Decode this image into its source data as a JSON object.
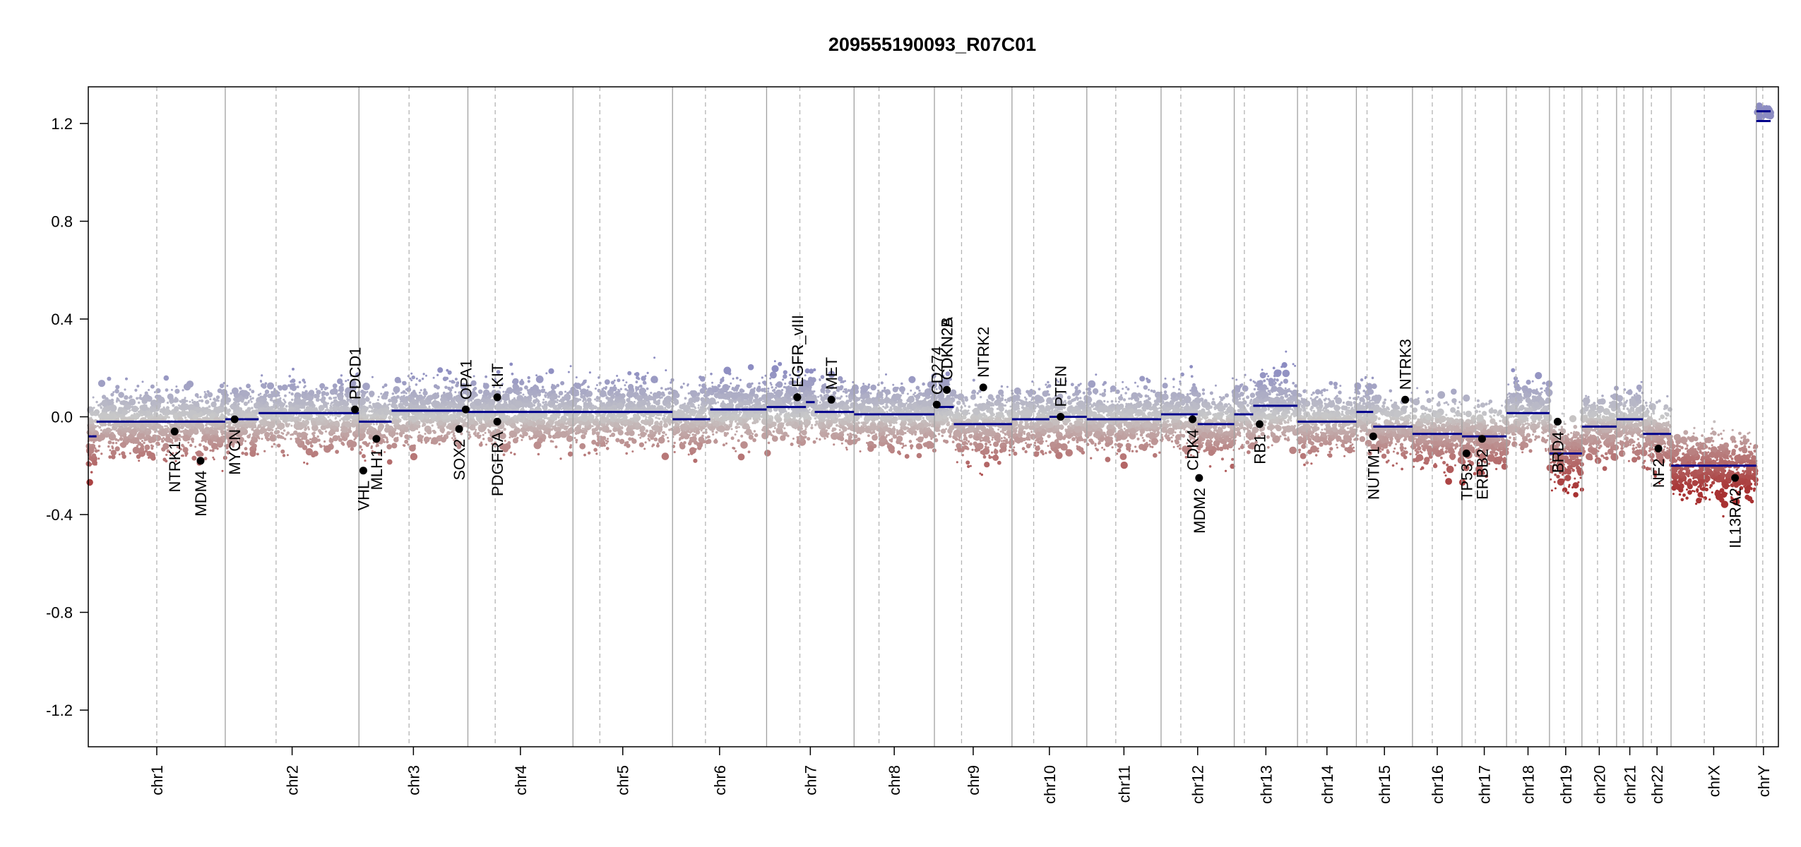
{
  "chart_data": {
    "type": "scatter",
    "title": "209555190093_R07C01",
    "xlabel": "",
    "ylabel": "",
    "ylim": [
      -1.35,
      1.35
    ],
    "yticks": [
      -1.2,
      -0.8,
      -0.4,
      0.0,
      0.4,
      0.8,
      1.2
    ],
    "ytick_labels": [
      "-1.2",
      "-0.8",
      "-0.4",
      "0.0",
      "0.4",
      "0.8",
      "1.2"
    ],
    "colors": {
      "gain": "#8c8cc2",
      "neutral": "#c8c8c8",
      "loss": "#a83232",
      "segment": "#00008b",
      "gene": "#000000"
    },
    "chromosomes": [
      {
        "name": "chr1",
        "length": 249,
        "centromere": 0.5,
        "segments": [
          {
            "start": 0.0,
            "end": 0.06,
            "value": -0.08
          },
          {
            "start": 0.06,
            "end": 1.0,
            "value": -0.02
          }
        ]
      },
      {
        "name": "chr2",
        "length": 243,
        "centromere": 0.38,
        "segments": [
          {
            "start": 0.0,
            "end": 0.25,
            "value": -0.01
          },
          {
            "start": 0.25,
            "end": 1.0,
            "value": 0.015
          }
        ]
      },
      {
        "name": "chr3",
        "length": 198,
        "centromere": 0.46,
        "segments": [
          {
            "start": 0.0,
            "end": 0.3,
            "value": -0.02
          },
          {
            "start": 0.3,
            "end": 1.0,
            "value": 0.025
          }
        ]
      },
      {
        "name": "chr4",
        "length": 191,
        "centromere": 0.26,
        "segments": [
          {
            "start": 0.0,
            "end": 1.0,
            "value": 0.02
          }
        ]
      },
      {
        "name": "chr5",
        "length": 181,
        "centromere": 0.27,
        "segments": [
          {
            "start": 0.0,
            "end": 1.0,
            "value": 0.02
          }
        ]
      },
      {
        "name": "chr6",
        "length": 171,
        "centromere": 0.35,
        "segments": [
          {
            "start": 0.0,
            "end": 0.4,
            "value": -0.01
          },
          {
            "start": 0.4,
            "end": 1.0,
            "value": 0.03
          }
        ]
      },
      {
        "name": "chr7",
        "length": 159,
        "centromere": 0.38,
        "segments": [
          {
            "start": 0.0,
            "end": 0.45,
            "value": 0.04
          },
          {
            "start": 0.45,
            "end": 0.55,
            "value": 0.06
          },
          {
            "start": 0.55,
            "end": 1.0,
            "value": 0.02
          }
        ]
      },
      {
        "name": "chr8",
        "length": 146,
        "centromere": 0.31,
        "segments": [
          {
            "start": 0.0,
            "end": 1.0,
            "value": 0.01
          }
        ]
      },
      {
        "name": "chr9",
        "length": 141,
        "centromere": 0.35,
        "segments": [
          {
            "start": 0.0,
            "end": 0.25,
            "value": 0.04
          },
          {
            "start": 0.25,
            "end": 1.0,
            "value": -0.03
          }
        ]
      },
      {
        "name": "chr10",
        "length": 136,
        "centromere": 0.29,
        "segments": [
          {
            "start": 0.0,
            "end": 0.5,
            "value": -0.01
          },
          {
            "start": 0.5,
            "end": 1.0,
            "value": 0.0
          }
        ]
      },
      {
        "name": "chr11",
        "length": 135,
        "centromere": 0.39,
        "segments": [
          {
            "start": 0.0,
            "end": 1.0,
            "value": -0.01
          }
        ]
      },
      {
        "name": "chr12",
        "length": 133,
        "centromere": 0.27,
        "segments": [
          {
            "start": 0.0,
            "end": 0.5,
            "value": 0.01
          },
          {
            "start": 0.5,
            "end": 1.0,
            "value": -0.03
          }
        ]
      },
      {
        "name": "chr13",
        "length": 115,
        "centromere": 0.16,
        "segments": [
          {
            "start": 0.0,
            "end": 0.3,
            "value": 0.01
          },
          {
            "start": 0.3,
            "end": 1.0,
            "value": 0.045
          }
        ]
      },
      {
        "name": "chr14",
        "length": 107,
        "centromere": 0.16,
        "segments": [
          {
            "start": 0.0,
            "end": 1.0,
            "value": -0.02
          }
        ]
      },
      {
        "name": "chr15",
        "length": 102,
        "centromere": 0.19,
        "segments": [
          {
            "start": 0.0,
            "end": 0.3,
            "value": 0.02
          },
          {
            "start": 0.3,
            "end": 1.0,
            "value": -0.04
          }
        ]
      },
      {
        "name": "chr16",
        "length": 90,
        "centromere": 0.4,
        "segments": [
          {
            "start": 0.0,
            "end": 1.0,
            "value": -0.07
          }
        ]
      },
      {
        "name": "chr17",
        "length": 81,
        "centromere": 0.3,
        "segments": [
          {
            "start": 0.0,
            "end": 1.0,
            "value": -0.08
          }
        ]
      },
      {
        "name": "chr18",
        "length": 78,
        "centromere": 0.22,
        "segments": [
          {
            "start": 0.0,
            "end": 1.0,
            "value": 0.015
          }
        ]
      },
      {
        "name": "chr19",
        "length": 59,
        "centromere": 0.45,
        "segments": [
          {
            "start": 0.0,
            "end": 1.0,
            "value": -0.15
          }
        ]
      },
      {
        "name": "chr20",
        "length": 63,
        "centromere": 0.45,
        "segments": [
          {
            "start": 0.0,
            "end": 1.0,
            "value": -0.04
          }
        ]
      },
      {
        "name": "chr21",
        "length": 48,
        "centromere": 0.28,
        "segments": [
          {
            "start": 0.0,
            "end": 1.0,
            "value": -0.01
          }
        ]
      },
      {
        "name": "chr22",
        "length": 51,
        "centromere": 0.3,
        "segments": [
          {
            "start": 0.0,
            "end": 1.0,
            "value": -0.07
          }
        ]
      },
      {
        "name": "chrX",
        "length": 155,
        "centromere": 0.39,
        "segments": [
          {
            "start": 0.0,
            "end": 1.0,
            "value": -0.2
          }
        ]
      },
      {
        "name": "chrY",
        "length": 26,
        "centromere": 0.45,
        "segments": [
          {
            "start": 0.0,
            "end": 1.0,
            "value": 1.21
          },
          {
            "start": 0.0,
            "end": 1.0,
            "value": 1.25
          }
        ]
      }
    ],
    "genes": [
      {
        "name": "NTRK1",
        "chrom": "chr1",
        "pos": 0.63,
        "value": -0.06
      },
      {
        "name": "MDM4",
        "chrom": "chr1",
        "pos": 0.82,
        "value": -0.18
      },
      {
        "name": "MYCN",
        "chrom": "chr2",
        "pos": 0.07,
        "value": -0.01
      },
      {
        "name": "PDCD1",
        "chrom": "chr2",
        "pos": 0.97,
        "value": 0.03
      },
      {
        "name": "VHL",
        "chrom": "chr3",
        "pos": 0.04,
        "value": -0.22
      },
      {
        "name": "MLH1",
        "chrom": "chr3",
        "pos": 0.16,
        "value": -0.09
      },
      {
        "name": "SOX2",
        "chrom": "chr3",
        "pos": 0.92,
        "value": -0.05
      },
      {
        "name": "OPA1",
        "chrom": "chr3",
        "pos": 0.98,
        "value": 0.03
      },
      {
        "name": "PDGFRA",
        "chrom": "chr4",
        "pos": 0.28,
        "value": -0.02
      },
      {
        "name": "KIT",
        "chrom": "chr4",
        "pos": 0.28,
        "value": 0.08
      },
      {
        "name": "EGFR",
        "chrom": "chr7",
        "pos": 0.35,
        "value": 0.08
      },
      {
        "name": "EGFR_vIII",
        "chrom": "chr7",
        "pos": 0.35,
        "value": 0.08
      },
      {
        "name": "MET",
        "chrom": "chr7",
        "pos": 0.74,
        "value": 0.07
      },
      {
        "name": "CD274",
        "chrom": "chr9",
        "pos": 0.03,
        "value": 0.05
      },
      {
        "name": "CDKN2A",
        "chrom": "chr9",
        "pos": 0.16,
        "value": 0.11
      },
      {
        "name": "CDKN2B",
        "chrom": "chr9",
        "pos": 0.16,
        "value": 0.11
      },
      {
        "name": "NTRK2",
        "chrom": "chr9",
        "pos": 0.63,
        "value": 0.12
      },
      {
        "name": "PTEN",
        "chrom": "chr10",
        "pos": 0.65,
        "value": 0.0
      },
      {
        "name": "MDM2",
        "chrom": "chr12",
        "pos": 0.52,
        "value": -0.25
      },
      {
        "name": "CDK4",
        "chrom": "chr12",
        "pos": 0.43,
        "value": -0.01
      },
      {
        "name": "RB1",
        "chrom": "chr13",
        "pos": 0.4,
        "value": -0.03
      },
      {
        "name": "NUTM1",
        "chrom": "chr15",
        "pos": 0.3,
        "value": -0.08
      },
      {
        "name": "NTRK3",
        "chrom": "chr15",
        "pos": 0.87,
        "value": 0.07
      },
      {
        "name": "TP53",
        "chrom": "chr17",
        "pos": 0.1,
        "value": -0.15
      },
      {
        "name": "ERBB2",
        "chrom": "chr17",
        "pos": 0.45,
        "value": -0.09
      },
      {
        "name": "BRD4",
        "chrom": "chr19",
        "pos": 0.25,
        "value": -0.02
      },
      {
        "name": "NF2",
        "chrom": "chr22",
        "pos": 0.55,
        "value": -0.13
      },
      {
        "name": "IL13RA2",
        "chrom": "chrX",
        "pos": 0.75,
        "value": -0.25
      }
    ]
  }
}
